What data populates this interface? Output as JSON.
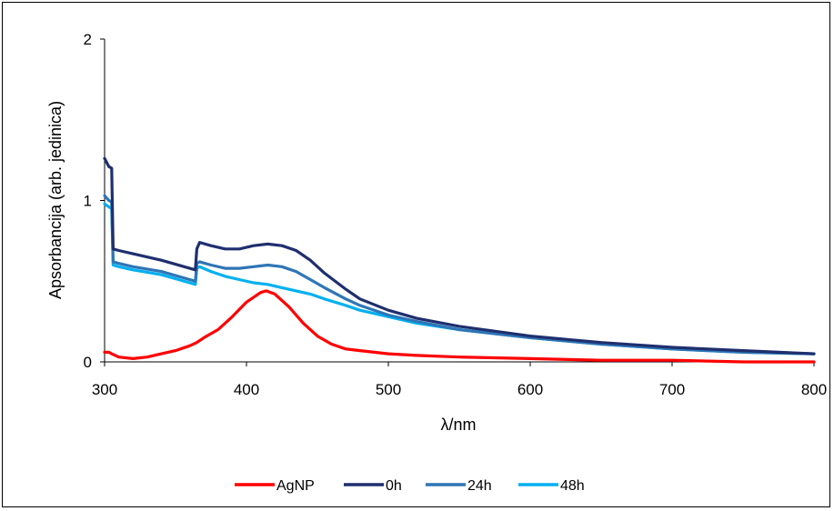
{
  "chart_data": {
    "type": "line",
    "title": "",
    "xlabel": "λ/nm",
    "ylabel": "Apsorbancija (arb. jedinica)",
    "xlim": [
      300,
      800
    ],
    "ylim": [
      0,
      2
    ],
    "x_ticks": [
      "300",
      "400",
      "500",
      "600",
      "700",
      "800"
    ],
    "y_ticks": [
      "0",
      "1",
      "2"
    ],
    "grid": false,
    "legend_position": "bottom",
    "series": [
      {
        "name": "AgNP",
        "color": "#ff0000",
        "x": [
          300,
          303,
          305,
          310,
          320,
          330,
          340,
          350,
          360,
          365,
          370,
          380,
          390,
          400,
          410,
          414,
          420,
          430,
          440,
          450,
          460,
          470,
          480,
          500,
          520,
          550,
          600,
          650,
          700,
          750,
          800
        ],
        "y": [
          0.06,
          0.06,
          0.05,
          0.03,
          0.02,
          0.03,
          0.05,
          0.07,
          0.1,
          0.12,
          0.15,
          0.2,
          0.28,
          0.37,
          0.43,
          0.44,
          0.42,
          0.34,
          0.24,
          0.16,
          0.11,
          0.08,
          0.07,
          0.05,
          0.04,
          0.03,
          0.02,
          0.01,
          0.01,
          0.0,
          0.0
        ]
      },
      {
        "name": "0h",
        "color": "#1f2f6e",
        "x": [
          300,
          303,
          305,
          306,
          310,
          320,
          340,
          360,
          364,
          365,
          367,
          375,
          385,
          395,
          405,
          415,
          425,
          435,
          445,
          455,
          470,
          480,
          500,
          520,
          550,
          600,
          650,
          700,
          750,
          800
        ],
        "y": [
          1.26,
          1.21,
          1.2,
          0.7,
          0.69,
          0.67,
          0.63,
          0.58,
          0.57,
          0.7,
          0.74,
          0.72,
          0.7,
          0.7,
          0.72,
          0.73,
          0.72,
          0.69,
          0.63,
          0.55,
          0.45,
          0.39,
          0.32,
          0.27,
          0.22,
          0.16,
          0.12,
          0.09,
          0.07,
          0.05
        ]
      },
      {
        "name": "24h",
        "color": "#2e75b6",
        "x": [
          300,
          303,
          305,
          306,
          310,
          320,
          340,
          360,
          364,
          365,
          367,
          375,
          385,
          395,
          405,
          415,
          425,
          435,
          445,
          455,
          470,
          480,
          500,
          520,
          550,
          600,
          650,
          700,
          750,
          800
        ],
        "y": [
          1.03,
          1.0,
          0.99,
          0.62,
          0.61,
          0.59,
          0.56,
          0.51,
          0.5,
          0.61,
          0.62,
          0.6,
          0.58,
          0.58,
          0.59,
          0.6,
          0.59,
          0.56,
          0.51,
          0.46,
          0.39,
          0.35,
          0.29,
          0.25,
          0.2,
          0.15,
          0.11,
          0.08,
          0.06,
          0.05
        ]
      },
      {
        "name": "48h",
        "color": "#00b0f0",
        "x": [
          300,
          303,
          305,
          306,
          310,
          320,
          340,
          360,
          364,
          365,
          367,
          375,
          385,
          395,
          405,
          415,
          425,
          435,
          445,
          455,
          470,
          480,
          500,
          520,
          550,
          600,
          650,
          700,
          750,
          800
        ],
        "y": [
          0.98,
          0.96,
          0.95,
          0.6,
          0.59,
          0.57,
          0.54,
          0.49,
          0.48,
          0.58,
          0.59,
          0.56,
          0.53,
          0.51,
          0.49,
          0.48,
          0.46,
          0.44,
          0.42,
          0.39,
          0.35,
          0.32,
          0.28,
          0.24,
          0.2,
          0.15,
          0.11,
          0.08,
          0.06,
          0.05
        ]
      }
    ]
  }
}
